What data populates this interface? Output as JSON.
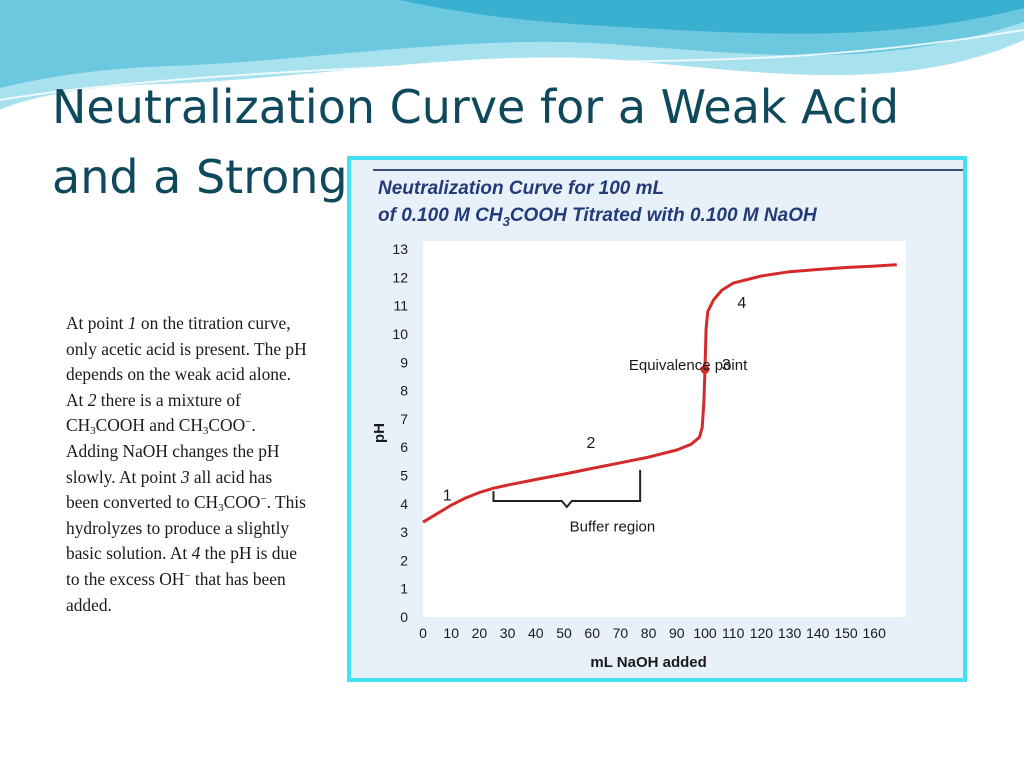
{
  "slide": {
    "title_line1": "Neutralization Curve for a Weak Acid",
    "title_line2": "and a Strong B",
    "theme": {
      "title_color": "#0f4a5c",
      "frame_color": "#44e1f2",
      "wave_color": "#7fd0e6"
    }
  },
  "body": {
    "segments": [
      {
        "t": "At point "
      },
      {
        "t": "1",
        "i": true
      },
      {
        "t": " on the titration curve, only acetic acid is present. The pH depends on the weak acid alone."
      },
      {
        "br": true
      },
      {
        "t": "At "
      },
      {
        "t": "2",
        "i": true
      },
      {
        "t": " there is a mixture of CH"
      },
      {
        "t": "3",
        "sub": true
      },
      {
        "t": "COOH and CH"
      },
      {
        "t": "3",
        "sub": true
      },
      {
        "t": "COO"
      },
      {
        "t": "−",
        "sup": true
      },
      {
        "t": ". Adding NaOH changes the pH slowly. At point "
      },
      {
        "t": "3",
        "i": true
      },
      {
        "t": " all acid has been converted to CH"
      },
      {
        "t": "3",
        "sub": true
      },
      {
        "t": "COO"
      },
      {
        "t": "−",
        "sup": true
      },
      {
        "t": ". This hydrolyzes to produce a slightly basic solution. At "
      },
      {
        "t": "4",
        "i": true
      },
      {
        "t": " the pH is due to the excess OH"
      },
      {
        "t": "−",
        "sup": true
      },
      {
        "t": " that has been added."
      }
    ]
  },
  "chart_data": {
    "type": "line",
    "title_line1": "Neutralization Curve for 100 mL",
    "title_line2_parts": [
      "of 0.100 M CH",
      "3",
      "COOH Titrated with 0.100 M NaOH"
    ],
    "xlabel": "mL NaOH added",
    "ylabel": "pH",
    "xlim": [
      0,
      160
    ],
    "ylim": [
      0,
      13
    ],
    "xticks": [
      0,
      10,
      20,
      30,
      40,
      50,
      60,
      70,
      80,
      90,
      100,
      110,
      120,
      130,
      140,
      150,
      160
    ],
    "yticks": [
      0,
      1,
      2,
      3,
      4,
      5,
      6,
      7,
      8,
      9,
      10,
      11,
      12,
      13
    ],
    "grid": false,
    "series": [
      {
        "color": "#d42a2a",
        "points": [
          [
            0,
            3.35
          ],
          [
            5,
            3.65
          ],
          [
            10,
            3.95
          ],
          [
            15,
            4.2
          ],
          [
            20,
            4.4
          ],
          [
            25,
            4.55
          ],
          [
            30,
            4.66
          ],
          [
            40,
            4.86
          ],
          [
            50,
            5.05
          ],
          [
            60,
            5.25
          ],
          [
            70,
            5.45
          ],
          [
            80,
            5.65
          ],
          [
            90,
            5.9
          ],
          [
            95,
            6.1
          ],
          [
            98,
            6.35
          ],
          [
            99,
            6.7
          ],
          [
            99.6,
            7.6
          ],
          [
            100,
            8.8
          ],
          [
            100.4,
            10.2
          ],
          [
            101,
            10.8
          ],
          [
            103,
            11.2
          ],
          [
            106,
            11.55
          ],
          [
            110,
            11.8
          ],
          [
            120,
            12.05
          ],
          [
            130,
            12.2
          ],
          [
            140,
            12.28
          ],
          [
            150,
            12.35
          ],
          [
            160,
            12.4
          ],
          [
            168,
            12.45
          ]
        ]
      }
    ],
    "annotations": [
      {
        "label": "1",
        "x": 7,
        "y": 4.3
      },
      {
        "label": "2",
        "x": 58,
        "y": 6.15
      },
      {
        "label": "3",
        "x": 106,
        "y": 8.9
      },
      {
        "label": "4",
        "x": 111.5,
        "y": 11.1
      },
      {
        "label": "Equivalence point",
        "x": 73,
        "y": 8.9
      },
      {
        "label": "Buffer region",
        "x": 52,
        "y": 3.2
      }
    ],
    "equivalence_point": {
      "x": 100,
      "y": 8.75,
      "color": "#d42a2a"
    },
    "buffer_bracket": {
      "x_start": 25,
      "x_end": 77,
      "y_top": 5.2,
      "y_base": 4.1
    }
  }
}
